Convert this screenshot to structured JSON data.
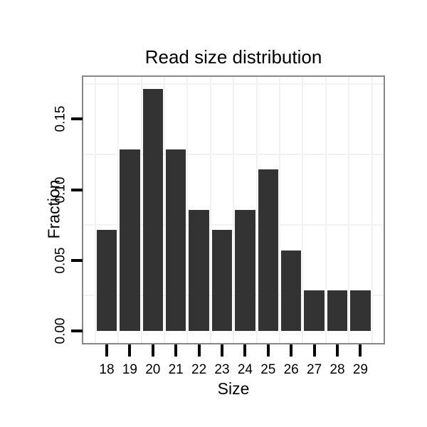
{
  "chart_data": {
    "type": "bar",
    "title": "Read size distribution",
    "xlabel": "Size",
    "ylabel": "Fraction",
    "categories": [
      "18",
      "19",
      "20",
      "21",
      "22",
      "23",
      "24",
      "25",
      "26",
      "27",
      "28",
      "29"
    ],
    "values": [
      0.0714,
      0.1286,
      0.1714,
      0.1286,
      0.0857,
      0.0714,
      0.0857,
      0.1143,
      0.0571,
      0.0286,
      0.0286,
      0.0286
    ],
    "ylim": [
      -0.0086,
      0.18
    ],
    "yticks": [
      0,
      0.05,
      0.1,
      0.15
    ],
    "ytick_labels": [
      "0.00",
      "0.05",
      "0.10",
      "0.15"
    ],
    "minor_gridlines_y": [
      0.025,
      0.075,
      0.125,
      0.175
    ],
    "grid": "minor-horizontal and vertical category boundaries",
    "legend": "none",
    "colors": {
      "bar_fill": "#333333",
      "panel_border": "#888888",
      "gridline": "#f2f2f2",
      "tick": "#000000",
      "text": "#000000",
      "background": "#ffffff"
    }
  }
}
